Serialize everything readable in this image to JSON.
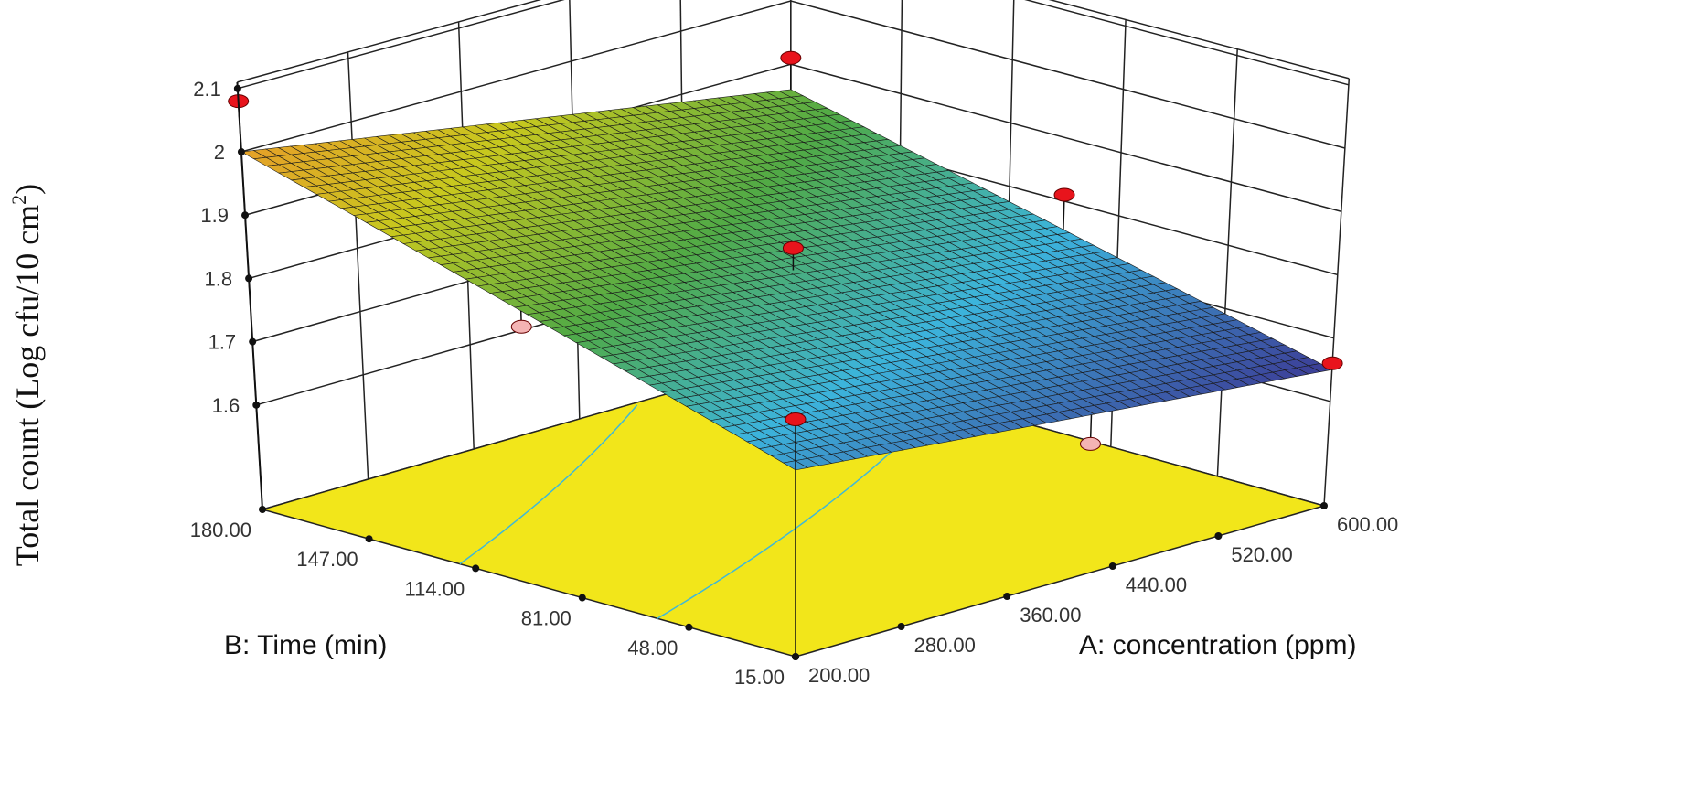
{
  "chart_data": {
    "type": "surface3d",
    "title": "",
    "zlabel": "Total count (Log cfu/10 cm",
    "zlabel_sup": "2",
    "zlabel_end": ")",
    "xlabel": "A: concentration (ppm)",
    "ylabel": "B: Time (min)",
    "x_ticks": [
      "200.00",
      "280.00",
      "360.00",
      "440.00",
      "520.00",
      "600.00"
    ],
    "y_ticks": [
      "15.00",
      "48.00",
      "81.00",
      "114.00",
      "147.00",
      "180.00"
    ],
    "z_ticks": [
      "1.6",
      "1.7",
      "1.8",
      "1.9",
      "2",
      "2.1"
    ],
    "xlim": [
      200,
      600
    ],
    "ylim": [
      15,
      180
    ],
    "zlim": [
      1.6,
      2.1
    ],
    "surface_corners": [
      {
        "A": 200,
        "B": 15,
        "z": 1.73
      },
      {
        "A": 600,
        "B": 15,
        "z": 1.65
      },
      {
        "A": 200,
        "B": 180,
        "z": 2.0
      },
      {
        "A": 600,
        "B": 180,
        "z": 1.86
      }
    ],
    "design_points": [
      {
        "A": 200,
        "B": 180,
        "z": 2.08,
        "side": "above"
      },
      {
        "A": 600,
        "B": 180,
        "z": 1.91,
        "side": "above"
      },
      {
        "A": 400,
        "B": 97.5,
        "z": 1.845,
        "side": "above"
      },
      {
        "A": 600,
        "B": 97.5,
        "z": 1.81,
        "side": "above"
      },
      {
        "A": 200,
        "B": 15,
        "z": 1.81,
        "side": "above"
      },
      {
        "A": 600,
        "B": 15,
        "z": 1.66,
        "side": "above"
      },
      {
        "A": 200,
        "B": 97.5,
        "z": 1.84,
        "side": "below"
      },
      {
        "A": 420,
        "B": 15,
        "z": 1.64,
        "side": "below"
      }
    ],
    "floor_contours": [
      1.8,
      1.9
    ],
    "colors": {
      "above": "#e8141c",
      "below": "#f4b4b4",
      "floor": "#f2e61a",
      "contour": "#3fb8d8"
    }
  }
}
